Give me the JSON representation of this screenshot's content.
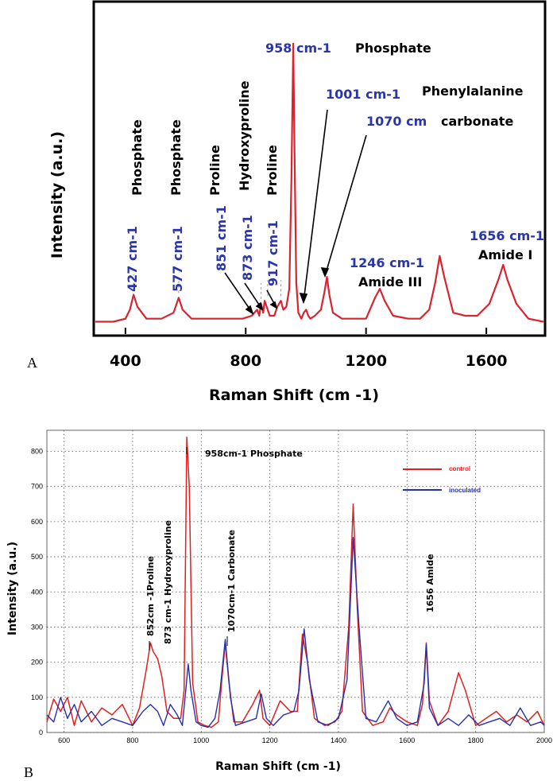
{
  "colors": {
    "spectrum_a": "#d9232e",
    "control": "#e02020",
    "inoculated": "#2430b0",
    "label_blue": "#2a36a8"
  },
  "chart_data": [
    {
      "id": "A",
      "type": "line",
      "panel_label": "A",
      "xlabel": "Raman Shift (cm -1)",
      "ylabel": "Intensity (a.u.)",
      "xlim": [
        300,
        1790
      ],
      "ylim": [
        0,
        100
      ],
      "xticks": [
        "400",
        "800",
        "1200",
        "1600"
      ],
      "series": [
        {
          "name": "spectrum",
          "x": [
            300,
            360,
            400,
            415,
            427,
            440,
            470,
            520,
            560,
            577,
            590,
            620,
            680,
            740,
            790,
            820,
            838,
            845,
            851,
            858,
            863,
            873,
            880,
            895,
            905,
            917,
            925,
            935,
            945,
            952,
            958,
            962,
            968,
            975,
            985,
            993,
            1001,
            1008,
            1015,
            1030,
            1050,
            1062,
            1070,
            1078,
            1090,
            1120,
            1160,
            1200,
            1230,
            1246,
            1262,
            1290,
            1340,
            1380,
            1410,
            1430,
            1445,
            1460,
            1490,
            1530,
            1570,
            1610,
            1640,
            1656,
            1670,
            1700,
            1740,
            1790
          ],
          "y": [
            2,
            2,
            3,
            6,
            11,
            7,
            3,
            3,
            5,
            10,
            6,
            3,
            3,
            3,
            3,
            4,
            6,
            4,
            8,
            5,
            9,
            6,
            4,
            4,
            7,
            9,
            6,
            7,
            13,
            50,
            95,
            60,
            15,
            5,
            3,
            5,
            6,
            4,
            3,
            4,
            6,
            12,
            17,
            11,
            5,
            3,
            3,
            3,
            10,
            13,
            9,
            4,
            3,
            3,
            6,
            15,
            24,
            17,
            5,
            4,
            4,
            8,
            16,
            21,
            16,
            8,
            3,
            2
          ]
        }
      ],
      "annotations": {
        "peaks_blue": [
          "427 cm-1",
          "577 cm-1",
          "851 cm-1",
          "873 cm-1",
          "917 cm-1"
        ],
        "peaks_names": [
          "Phosphate",
          "Phosphate",
          "Proline",
          "Hydroxyproline",
          "Proline"
        ],
        "p958": "958 cm-1",
        "p958_name": "Phosphate",
        "p1001": "1001 cm-1",
        "p1001_name": "Phenylalanine",
        "p1070": "1070 cm",
        "p1070_name": "carbonate",
        "p1246": "1246 cm-1",
        "p1246_name": "Amide III",
        "p1656": "1656 cm-1",
        "p1656_name": "Amide I"
      }
    },
    {
      "id": "B",
      "type": "line",
      "panel_label": "B",
      "xlabel": "Raman Shift (cm -1)",
      "ylabel": "Intensity (a.u.)",
      "xlim": [
        550,
        2000
      ],
      "ylim": [
        0,
        860
      ],
      "xticks": [
        "600",
        "800",
        "1000",
        "1200",
        "1400",
        "1600",
        "1800",
        "2000"
      ],
      "yticks": [
        "0",
        "100",
        "200",
        "300",
        "400",
        "500",
        "600",
        "700",
        "800"
      ],
      "legend": {
        "position": "top-right",
        "entries": [
          "control",
          "inoculated"
        ]
      },
      "series": [
        {
          "name": "control",
          "x": [
            550,
            570,
            590,
            610,
            630,
            650,
            680,
            710,
            740,
            770,
            800,
            820,
            840,
            852,
            860,
            873,
            885,
            900,
            920,
            940,
            950,
            958,
            965,
            975,
            990,
            1010,
            1030,
            1050,
            1060,
            1070,
            1080,
            1095,
            1120,
            1150,
            1170,
            1180,
            1200,
            1230,
            1260,
            1280,
            1295,
            1310,
            1330,
            1360,
            1390,
            1410,
            1430,
            1443,
            1455,
            1470,
            1500,
            1530,
            1550,
            1570,
            1600,
            1630,
            1645,
            1656,
            1665,
            1690,
            1720,
            1750,
            1770,
            1800,
            1830,
            1860,
            1890,
            1920,
            1950,
            1980,
            2000
          ],
          "y": [
            30,
            95,
            60,
            100,
            20,
            90,
            30,
            70,
            50,
            80,
            20,
            70,
            180,
            255,
            230,
            210,
            160,
            60,
            40,
            40,
            120,
            840,
            700,
            140,
            30,
            20,
            15,
            30,
            150,
            255,
            150,
            30,
            30,
            80,
            120,
            40,
            20,
            90,
            60,
            60,
            280,
            200,
            40,
            20,
            30,
            60,
            300,
            650,
            350,
            60,
            20,
            30,
            70,
            50,
            30,
            20,
            80,
            255,
            90,
            20,
            60,
            170,
            120,
            20,
            40,
            60,
            30,
            50,
            30,
            60,
            20
          ]
        },
        {
          "name": "inoculated",
          "x": [
            550,
            570,
            590,
            610,
            630,
            650,
            680,
            710,
            740,
            770,
            800,
            830,
            852,
            873,
            890,
            910,
            930,
            945,
            955,
            962,
            970,
            985,
            1000,
            1020,
            1040,
            1055,
            1070,
            1085,
            1100,
            1130,
            1160,
            1175,
            1190,
            1210,
            1240,
            1270,
            1285,
            1300,
            1315,
            1340,
            1370,
            1400,
            1425,
            1443,
            1460,
            1480,
            1510,
            1545,
            1570,
            1600,
            1630,
            1650,
            1656,
            1665,
            1690,
            1720,
            1750,
            1780,
            1810,
            1840,
            1870,
            1900,
            1930,
            1960,
            1990,
            2000
          ],
          "y": [
            50,
            30,
            100,
            40,
            80,
            30,
            60,
            20,
            40,
            30,
            20,
            60,
            80,
            60,
            20,
            80,
            50,
            20,
            120,
            195,
            120,
            30,
            20,
            15,
            40,
            120,
            265,
            100,
            20,
            30,
            40,
            110,
            40,
            20,
            50,
            60,
            120,
            295,
            150,
            30,
            20,
            40,
            150,
            555,
            300,
            40,
            30,
            90,
            40,
            20,
            30,
            140,
            250,
            70,
            20,
            40,
            20,
            50,
            20,
            30,
            40,
            20,
            70,
            20,
            30,
            20
          ]
        }
      ],
      "annotations": {
        "p958": "958cm-1 Phosphate",
        "p852": "852cm -1Proline",
        "p873": "873 cm-1 Hydroxyproline",
        "p1070": "1070cm-1 Carbonate",
        "p1656": "1656 Amide"
      }
    }
  ]
}
